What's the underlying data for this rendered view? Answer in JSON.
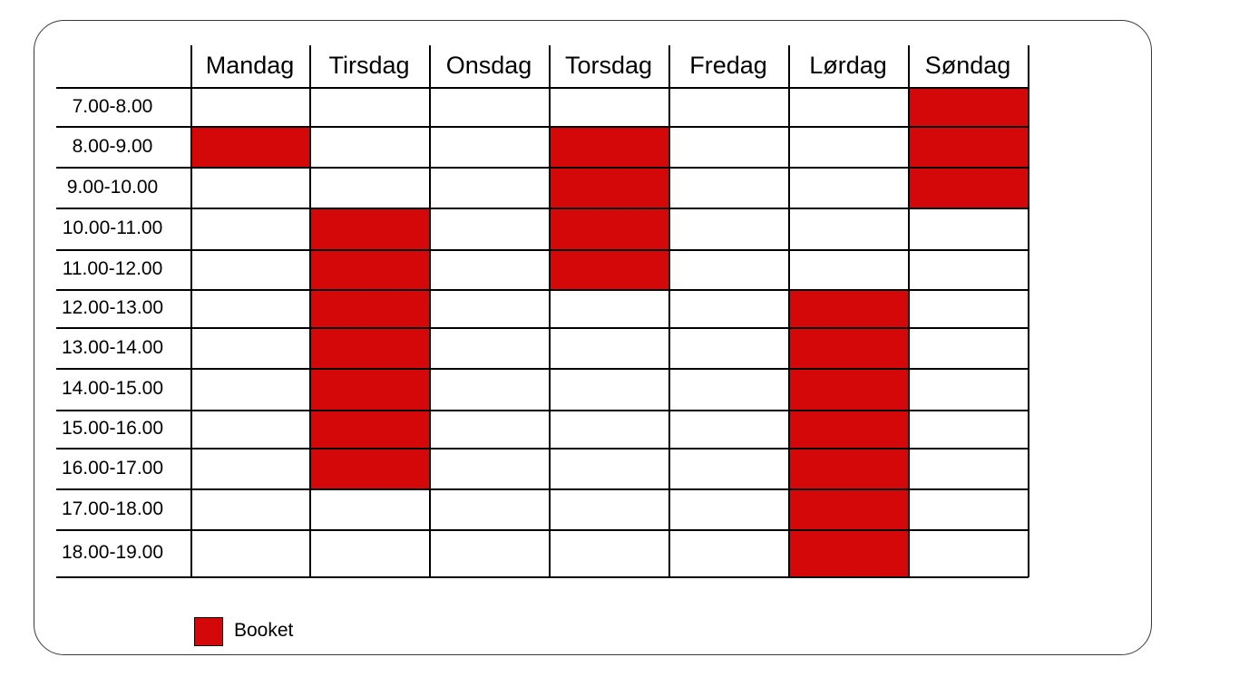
{
  "schedule": {
    "days": [
      "Mandag",
      "Tirsdag",
      "Onsdag",
      "Torsdag",
      "Fredag",
      "Lørdag",
      "Søndag"
    ],
    "times": [
      "7.00-8.00",
      "8.00-9.00",
      "9.00-10.00",
      "10.00-11.00",
      "11.00-12.00",
      "12.00-13.00",
      "13.00-14.00",
      "14.00-15.00",
      "15.00-16.00",
      "16.00-17.00",
      "17.00-18.00",
      "18.00-19.00"
    ],
    "booked": {
      "Mandag": [
        "8.00-9.00"
      ],
      "Tirsdag": [
        "10.00-11.00",
        "11.00-12.00",
        "12.00-13.00",
        "13.00-14.00",
        "14.00-15.00",
        "15.00-16.00",
        "16.00-17.00"
      ],
      "Onsdag": [],
      "Torsdag": [
        "8.00-9.00",
        "9.00-10.00",
        "10.00-11.00",
        "11.00-12.00"
      ],
      "Fredag": [],
      "Lørdag": [
        "12.00-13.00",
        "13.00-14.00",
        "14.00-15.00",
        "15.00-16.00",
        "16.00-17.00",
        "17.00-18.00",
        "18.00-19.00"
      ],
      "Søndag": [
        "7.00-8.00",
        "8.00-9.00",
        "9.00-10.00"
      ]
    }
  },
  "legend": {
    "booked_label": "Booket"
  },
  "colors": {
    "booked": "#d40808",
    "grid": "#000000",
    "border": "#3a3a3a"
  }
}
